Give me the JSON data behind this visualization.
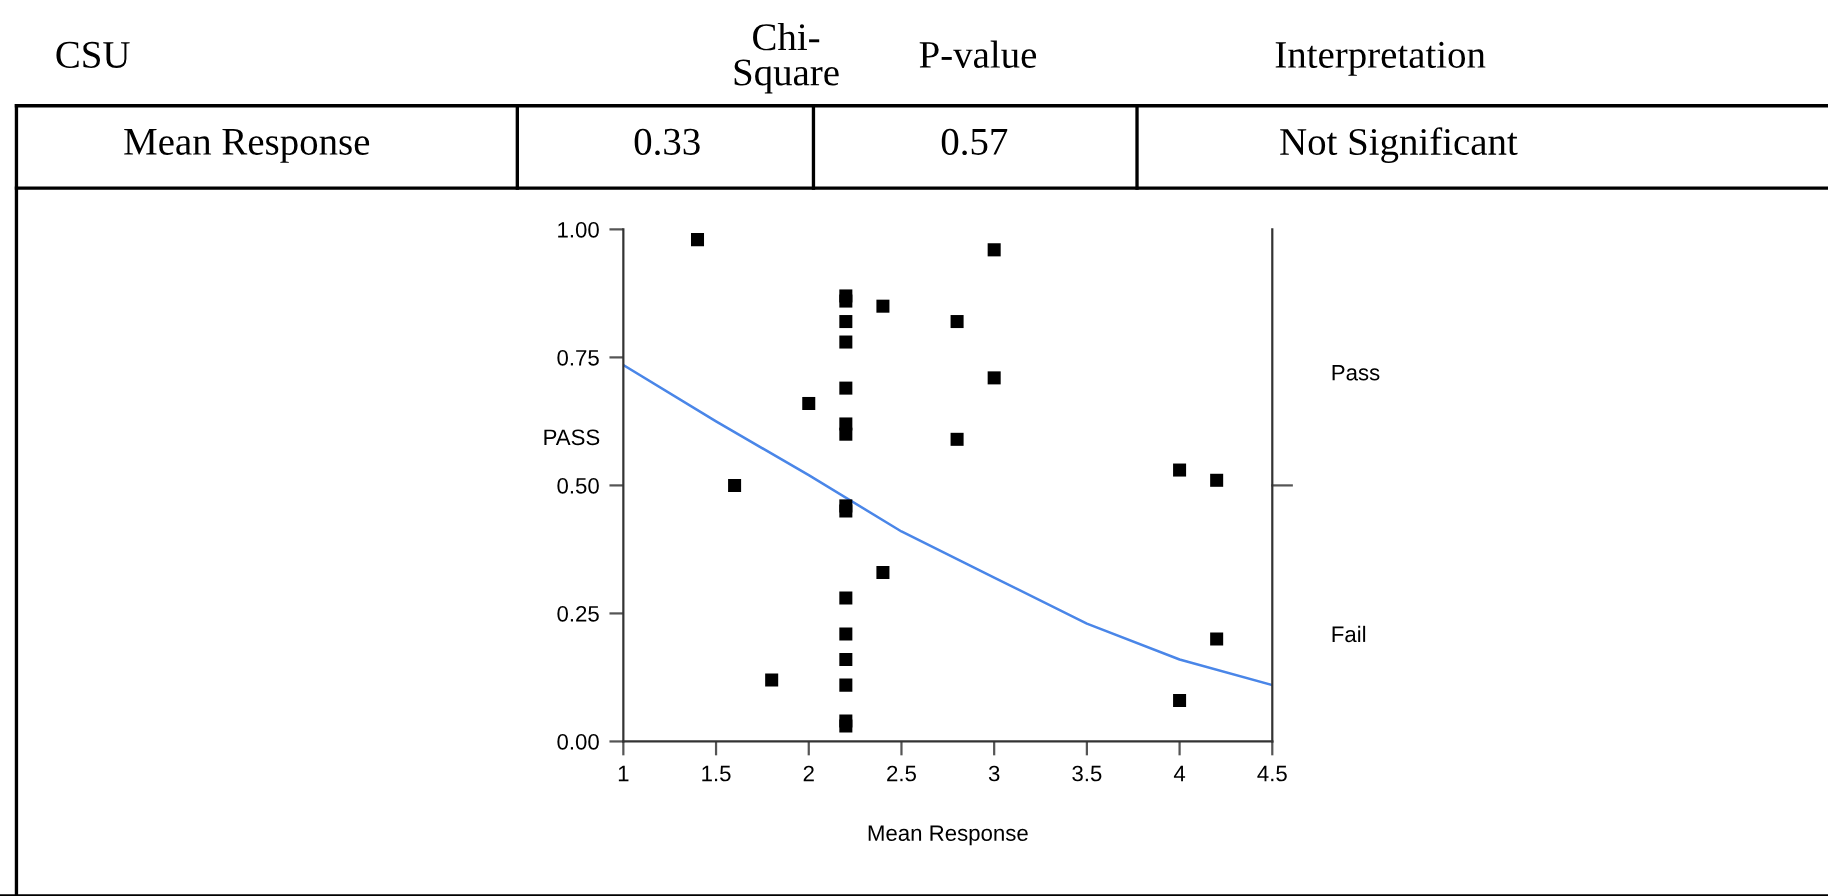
{
  "chart_data": {
    "type": "scatter",
    "xlabel": "Mean Response",
    "ylabel": "PASS",
    "annotations": [
      "CSU",
      "Chi-\nSquare",
      "P-value",
      "Interpretation",
      "Mean Response",
      "0.33",
      "0.57",
      "Not Significant",
      "Pass",
      "Fail"
    ],
    "xlim": [
      1,
      4.5
    ],
    "xticks": [
      1,
      1.5,
      2,
      2.5,
      3,
      3.5,
      4,
      4.5
    ],
    "ylim": [
      0,
      1
    ],
    "yticks": [
      {
        "value": 0,
        "label": "0.00"
      },
      {
        "value": 0.25,
        "label": "0.25"
      },
      {
        "value": 0.5,
        "label": "0.50"
      },
      {
        "value": 0.75,
        "label": "0.75"
      },
      {
        "value": 1,
        "label": "1.00"
      }
    ],
    "grid": false,
    "legend": false,
    "series": [
      {
        "marker": "square",
        "color": "#000000",
        "x": [
          1.4,
          1.6,
          1.8,
          2.0,
          2.2,
          2.2,
          2.2,
          2.2,
          2.2,
          2.2,
          2.2,
          2.2,
          2.2,
          2.2,
          2.2,
          2.2,
          2.2,
          2.2,
          2.2,
          2.4,
          2.4,
          2.8,
          2.8,
          3.0,
          3.0,
          4.0,
          4.2,
          4.2,
          4.0
        ],
        "values": [
          0.98,
          0.5,
          0.12,
          0.66,
          0.87,
          0.86,
          0.82,
          0.78,
          0.69,
          0.62,
          0.6,
          0.46,
          0.45,
          0.28,
          0.21,
          0.16,
          0.11,
          0.04,
          0.03,
          0.85,
          0.33,
          0.82,
          0.59,
          0.96,
          0.71,
          0.53,
          0.51,
          0.2,
          0.08
        ]
      },
      {
        "type": "line",
        "marker": "none",
        "line_style": "solid",
        "color": "#4a86e8",
        "x": [
          1,
          1.5,
          2,
          2.5,
          3,
          3.5,
          4,
          4.5
        ],
        "values": [
          0.735,
          0.625,
          0.52,
          0.41,
          0.32,
          0.23,
          0.16,
          0.11
        ]
      }
    ]
  }
}
